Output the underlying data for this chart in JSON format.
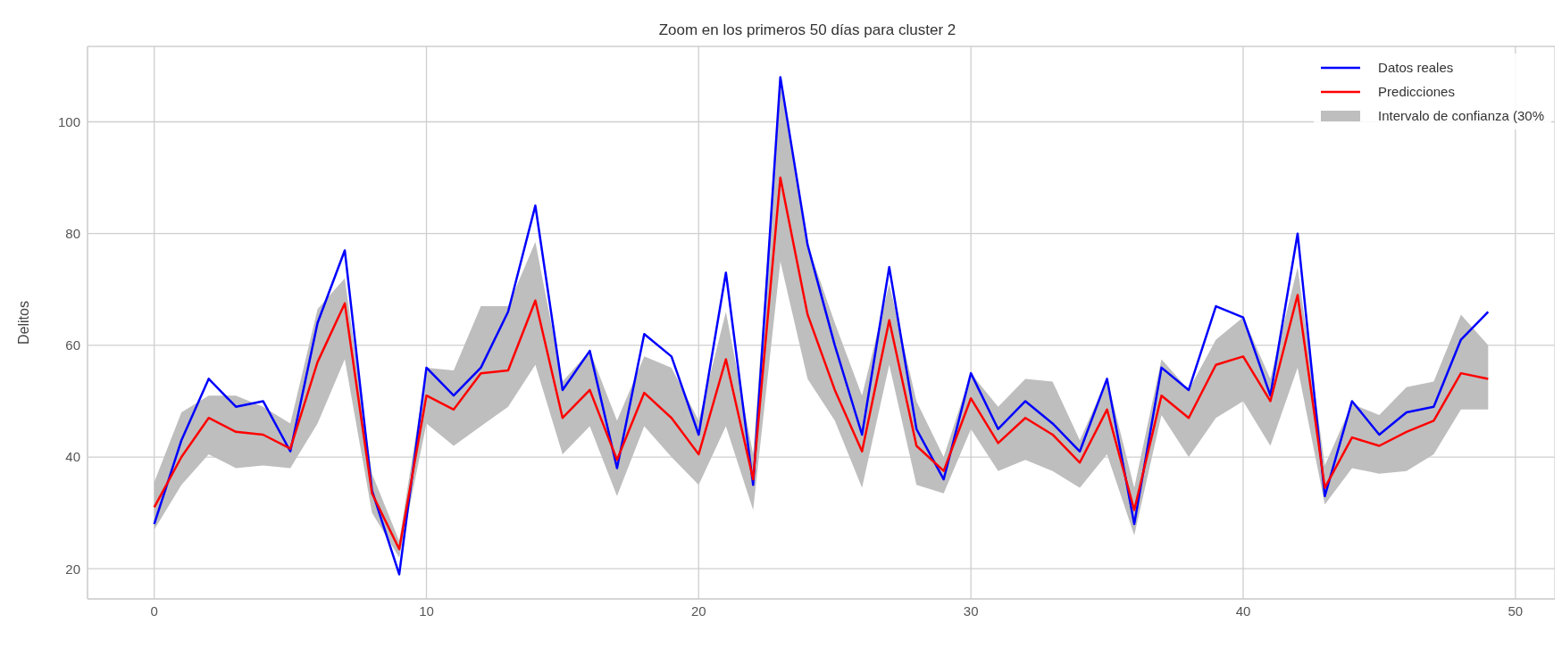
{
  "chart_data": {
    "type": "line",
    "title": "Zoom en los primeros 50 días para cluster 2",
    "ylabel": "Delitos",
    "x": [
      0,
      1,
      2,
      3,
      4,
      5,
      6,
      7,
      8,
      9,
      10,
      11,
      12,
      13,
      14,
      15,
      16,
      17,
      18,
      19,
      20,
      21,
      22,
      23,
      24,
      25,
      26,
      27,
      28,
      29,
      30,
      31,
      32,
      33,
      34,
      35,
      36,
      37,
      38,
      39,
      40,
      41,
      42,
      43,
      44,
      45,
      46,
      47,
      48,
      49
    ],
    "series": [
      {
        "name": "Datos reales",
        "color": "#0000ff",
        "values": [
          28,
          43,
          54,
          49,
          50,
          41,
          64,
          77,
          34,
          19,
          56,
          51,
          56,
          66,
          85,
          52,
          59,
          38,
          62,
          58,
          44,
          73,
          35,
          108,
          78,
          60,
          44,
          74,
          45,
          36,
          55,
          45,
          50,
          46,
          41,
          54,
          28,
          56,
          52,
          67,
          65,
          51,
          80,
          33,
          50,
          44,
          48,
          49,
          61,
          66
        ]
      },
      {
        "name": "Predicciones",
        "color": "#ff0000",
        "values": [
          31,
          40,
          47,
          44.5,
          44,
          41.5,
          57,
          67.5,
          33.5,
          23.5,
          51,
          48.5,
          55,
          55.5,
          68,
          47,
          52,
          39.5,
          51.5,
          47,
          40.5,
          57.5,
          36,
          90,
          65.5,
          52,
          41,
          64.5,
          42,
          37.5,
          50.5,
          42.5,
          47,
          44,
          39,
          48.5,
          30.5,
          51,
          47,
          56.5,
          58,
          50,
          69,
          34.5,
          43.5,
          42,
          44.5,
          46.5,
          55,
          54
        ],
        "lower": [
          27,
          35,
          40.5,
          38,
          38.5,
          38,
          46,
          57.5,
          30,
          22,
          46,
          42,
          45.5,
          49,
          56.5,
          40.5,
          45.5,
          33,
          45.5,
          40,
          35,
          45.5,
          30.5,
          75,
          54,
          46.5,
          34.5,
          56.5,
          35,
          33.5,
          45,
          37.5,
          39.5,
          37.5,
          34.5,
          40.5,
          26,
          47.5,
          40,
          47,
          50,
          42,
          56,
          31.5,
          38,
          37,
          37.5,
          40.5,
          48.5,
          48.5
        ],
        "upper": [
          35.5,
          48,
          51,
          51,
          49,
          46,
          66.5,
          72,
          37,
          25,
          56,
          55.5,
          67,
          67,
          78.5,
          53.5,
          59,
          46.5,
          58,
          56,
          46.5,
          66,
          40.5,
          107,
          78,
          64,
          51,
          71,
          50,
          40,
          55,
          49,
          54,
          53.5,
          43,
          54,
          34.5,
          57.5,
          52,
          61,
          65,
          54,
          74,
          38.5,
          49.5,
          47.5,
          52.5,
          53.5,
          65.5,
          60
        ]
      }
    ],
    "annotations": [
      "Intervalo de confianza (30%"
    ],
    "xlim": [
      -2.45,
      51.45
    ],
    "ylim": [
      14.6,
      113.5
    ],
    "xticks": [
      0,
      10,
      20,
      30,
      40,
      50
    ],
    "yticks": [
      20,
      40,
      60,
      80,
      100
    ],
    "grid": true,
    "legend": "top right",
    "line_style": "solid"
  }
}
